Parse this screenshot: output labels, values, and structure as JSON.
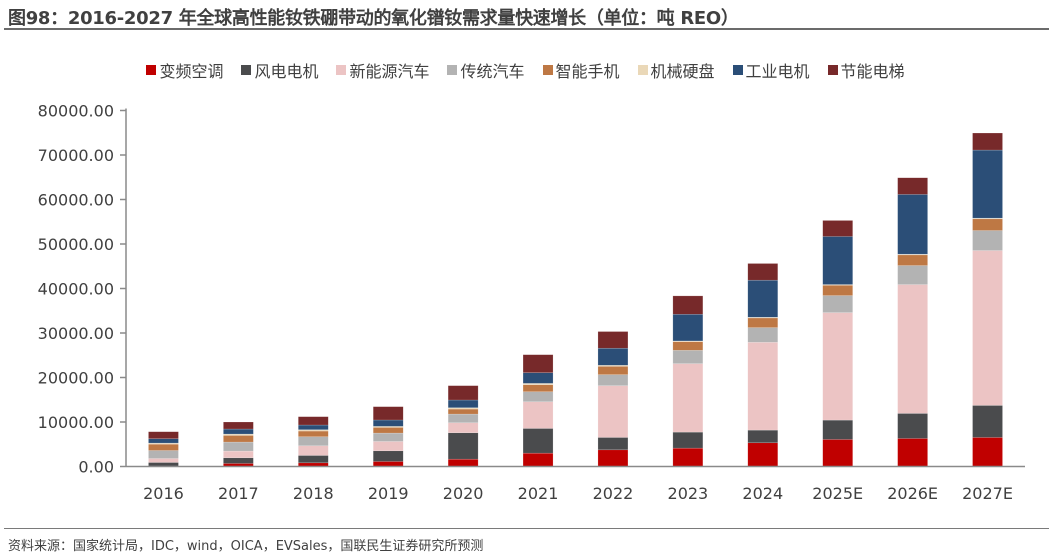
{
  "title": "图98：2016-2027 年全球高性能钕铁硼带动的氧化镨钕需求量快速增长（单位：吨 REO）",
  "source": "资料来源：国家统计局，IDC，wind，OICA，EVSales，国联民生证券研究所预测",
  "chart_data": {
    "type": "bar",
    "stacked": true,
    "title": "",
    "xlabel": "",
    "ylabel": "",
    "ylim": [
      0,
      80000
    ],
    "yticks": [
      "0.00",
      "10000.00",
      "20000.00",
      "30000.00",
      "40000.00",
      "50000.00",
      "60000.00",
      "70000.00",
      "80000.00"
    ],
    "grid": false,
    "legend_position": "top",
    "categories": [
      "2016",
      "2017",
      "2018",
      "2019",
      "2020",
      "2021",
      "2022",
      "2023",
      "2024",
      "2025E",
      "2026E",
      "2027E"
    ],
    "series": [
      {
        "name": "变频空调",
        "color": "#c00000",
        "values": [
          100,
          680,
          830,
          1130,
          1650,
          3000,
          3750,
          4130,
          5330,
          6080,
          6300,
          6530
        ]
      },
      {
        "name": "风电电机",
        "color": "#4a4b4d",
        "values": [
          800,
          1280,
          1650,
          2400,
          5930,
          5550,
          2780,
          3600,
          2850,
          4350,
          5630,
          7200
        ]
      },
      {
        "name": "新能源汽车",
        "color": "#ecc4c4",
        "values": [
          900,
          1500,
          2180,
          2100,
          2250,
          6000,
          11630,
          15380,
          19730,
          24150,
          28950,
          34800
        ]
      },
      {
        "name": "传统汽车",
        "color": "#b3b3b3",
        "values": [
          1800,
          2030,
          2030,
          1880,
          1950,
          2250,
          2480,
          3000,
          3300,
          3830,
          4280,
          4500
        ]
      },
      {
        "name": "智能手机",
        "color": "#be7844",
        "values": [
          1430,
          1500,
          1280,
          1280,
          1130,
          1580,
          1880,
          1950,
          2180,
          2330,
          2400,
          2630
        ]
      },
      {
        "name": "机械硬盘",
        "color": "#ead8b8",
        "values": [
          230,
          300,
          300,
          230,
          300,
          300,
          230,
          150,
          150,
          150,
          150,
          150
        ]
      },
      {
        "name": "工业电机",
        "color": "#2b4e77",
        "values": [
          980,
          1130,
          1050,
          1430,
          1730,
          2400,
          3830,
          6000,
          8330,
          10800,
          13430,
          15300
        ]
      },
      {
        "name": "节能电梯",
        "color": "#77292a",
        "values": [
          1580,
          1580,
          1880,
          3000,
          3230,
          4050,
          3750,
          4130,
          3750,
          3600,
          3750,
          3830
        ]
      }
    ]
  }
}
